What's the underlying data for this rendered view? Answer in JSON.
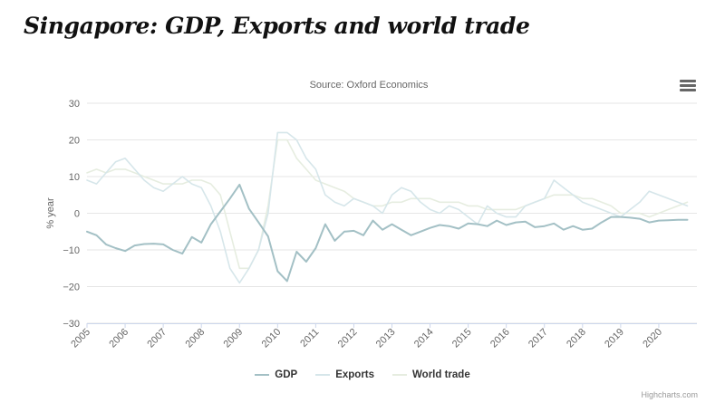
{
  "header": {
    "title": "Singapore: GDP, Exports and world trade"
  },
  "chart_data": {
    "type": "line",
    "subtitle": "Source: Oxford Economics",
    "ylabel": "% year",
    "xlabel": "",
    "ylim": [
      -30,
      30
    ],
    "yticks": [
      "30",
      "20",
      "10",
      "0",
      "−10",
      "−20",
      "−30"
    ],
    "year_ticks": [
      "2005",
      "2006",
      "2007",
      "2008",
      "2009",
      "2010",
      "2011",
      "2012",
      "2013",
      "2014",
      "2015",
      "2016",
      "2017",
      "2018",
      "2019",
      "2020"
    ],
    "grid": true,
    "legend": "bottom",
    "series": [
      {
        "name": "GDP",
        "color": "#a3c0c5",
        "x": [
          2005.0,
          2005.25,
          2005.5,
          2005.75,
          2006.0,
          2006.25,
          2006.5,
          2006.75,
          2007.0,
          2007.25,
          2007.5,
          2007.75,
          2008.0,
          2008.25,
          2008.5,
          2008.75,
          2009.0,
          2009.25,
          2009.5,
          2009.75,
          2010.0,
          2010.25,
          2010.5,
          2010.75,
          2011.0,
          2011.25,
          2011.5,
          2011.75,
          2012.0,
          2012.25,
          2012.5,
          2012.75,
          2013.0,
          2013.25,
          2013.5,
          2013.75,
          2014.0,
          2014.25,
          2014.5,
          2014.75,
          2015.0,
          2015.25,
          2015.5,
          2015.75,
          2016.0,
          2016.25,
          2016.5,
          2016.75,
          2017.0,
          2017.25,
          2017.5,
          2017.75,
          2018.0,
          2018.25,
          2018.5,
          2018.75,
          2019.0,
          2019.25,
          2019.5,
          2019.75,
          2020.0,
          2020.25,
          2020.5,
          2020.75
        ],
        "values": [
          -5,
          -6,
          -8.5,
          -9.5,
          -10.3,
          -8.8,
          -8.4,
          -8.3,
          -8.5,
          -10,
          -11,
          -6.5,
          -8,
          -3,
          0.5,
          4,
          7.8,
          1.2,
          -2.5,
          -6.3,
          -15.8,
          -18.5,
          -10.5,
          -13.2,
          -9.5,
          -3,
          -7.5,
          -5,
          -4.8,
          -6,
          -2,
          -4.5,
          -3,
          -4.5,
          -6,
          -5,
          -4,
          -3.2,
          -3.5,
          -4.2,
          -2.8,
          -3,
          -3.5,
          -2,
          -3.2,
          -2.5,
          -2.3,
          -3.8,
          -3.5,
          -2.8,
          -4.5,
          -3.5,
          -4.5,
          -4.2,
          -2.5,
          -1,
          -1,
          -1.2,
          -1.5,
          -2.5,
          -2,
          -1.9,
          -1.8,
          -1.8
        ]
      },
      {
        "name": "Exports",
        "color": "#d6e6ea",
        "x": [
          2005.0,
          2005.25,
          2005.5,
          2005.75,
          2006.0,
          2006.25,
          2006.5,
          2006.75,
          2007.0,
          2007.25,
          2007.5,
          2007.75,
          2008.0,
          2008.25,
          2008.5,
          2008.75,
          2009.0,
          2009.25,
          2009.5,
          2009.75,
          2010.0,
          2010.25,
          2010.5,
          2010.75,
          2011.0,
          2011.25,
          2011.5,
          2011.75,
          2012.0,
          2012.25,
          2012.5,
          2012.75,
          2013.0,
          2013.25,
          2013.5,
          2013.75,
          2014.0,
          2014.25,
          2014.5,
          2014.75,
          2015.0,
          2015.25,
          2015.5,
          2015.75,
          2016.0,
          2016.25,
          2016.5,
          2016.75,
          2017.0,
          2017.25,
          2017.5,
          2017.75,
          2018.0,
          2018.25,
          2018.5,
          2018.75,
          2019.0,
          2019.25,
          2019.5,
          2019.75,
          2020.0,
          2020.25,
          2020.5,
          2020.75
        ],
        "values": [
          9,
          8,
          11,
          14,
          15,
          12,
          9,
          7,
          6,
          8,
          10,
          8,
          7,
          2,
          -5,
          -15,
          -19,
          -15,
          -10,
          0,
          22,
          22,
          20,
          15,
          12,
          5,
          3,
          2,
          4,
          3,
          2,
          0,
          5,
          7,
          6,
          3,
          1,
          0,
          2,
          1,
          -1,
          -3,
          2,
          0,
          -1,
          -1,
          2,
          3,
          4,
          9,
          7,
          5,
          3,
          2,
          1,
          0,
          -1,
          1,
          3,
          6,
          5,
          4,
          3,
          2
        ]
      },
      {
        "name": "World trade",
        "color": "#e6ede0",
        "x": [
          2005.0,
          2005.25,
          2005.5,
          2005.75,
          2006.0,
          2006.25,
          2006.5,
          2006.75,
          2007.0,
          2007.25,
          2007.5,
          2007.75,
          2008.0,
          2008.25,
          2008.5,
          2008.75,
          2009.0,
          2009.25,
          2009.5,
          2009.75,
          2010.0,
          2010.25,
          2010.5,
          2010.75,
          2011.0,
          2011.25,
          2011.5,
          2011.75,
          2012.0,
          2012.25,
          2012.5,
          2012.75,
          2013.0,
          2013.25,
          2013.5,
          2013.75,
          2014.0,
          2014.25,
          2014.5,
          2014.75,
          2015.0,
          2015.25,
          2015.5,
          2015.75,
          2016.0,
          2016.25,
          2016.5,
          2016.75,
          2017.0,
          2017.25,
          2017.5,
          2017.75,
          2018.0,
          2018.25,
          2018.5,
          2018.75,
          2019.0,
          2019.25,
          2019.5,
          2019.75,
          2020.0,
          2020.25,
          2020.5,
          2020.75
        ],
        "values": [
          11,
          12,
          11,
          12,
          12,
          11,
          10,
          9,
          8,
          8,
          8,
          9,
          9,
          8,
          5,
          -5,
          -15,
          -15,
          -10,
          2,
          20,
          20,
          15,
          12,
          9,
          8,
          7,
          6,
          4,
          3,
          2,
          2,
          3,
          3,
          4,
          4,
          4,
          3,
          3,
          3,
          2,
          2,
          1,
          1,
          1,
          1,
          2,
          3,
          4,
          5,
          5,
          5,
          4,
          4,
          3,
          2,
          0,
          0,
          0,
          -1,
          0,
          1,
          2,
          3
        ]
      }
    ]
  },
  "chart_menu": {
    "icon": "hamburger-menu-icon"
  },
  "credits": "Highcharts.com"
}
